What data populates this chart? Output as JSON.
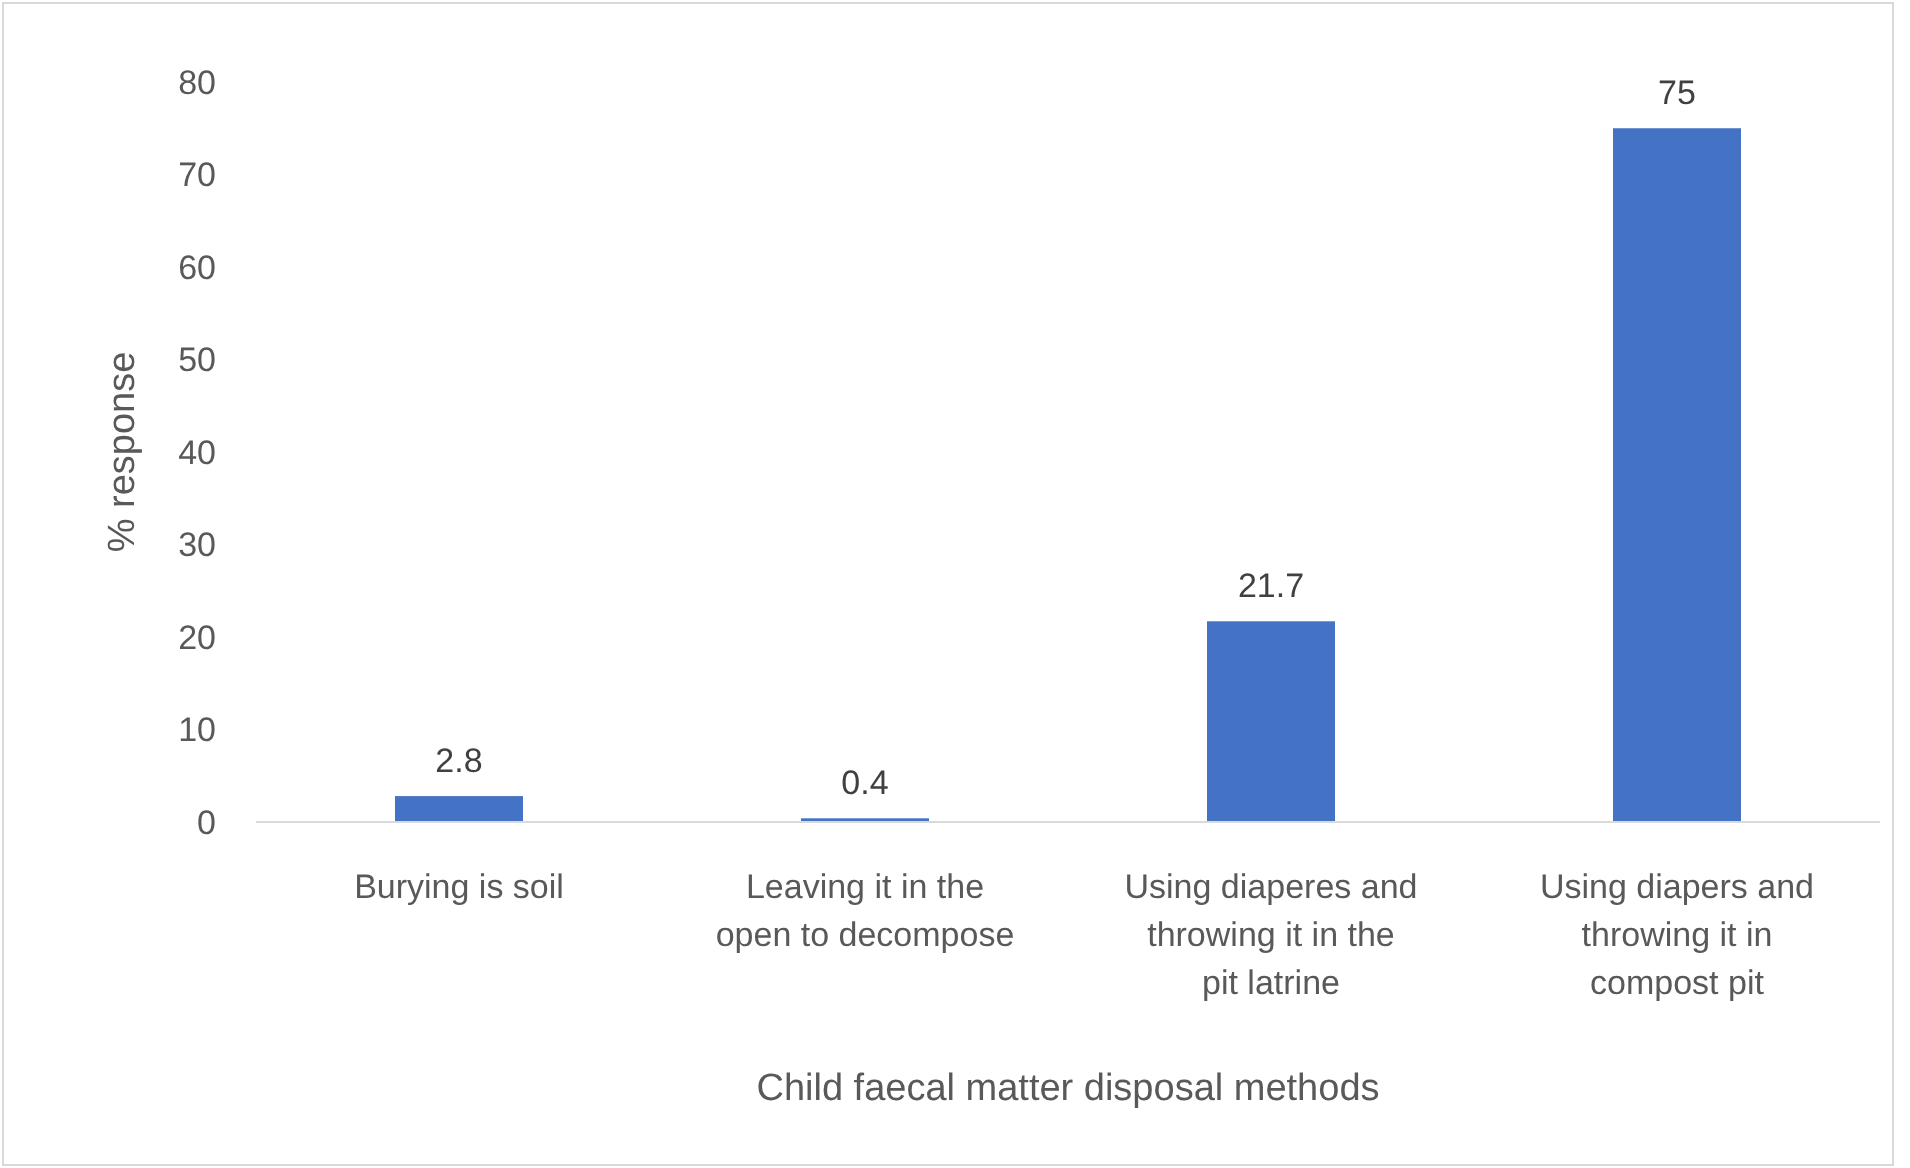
{
  "chart_data": {
    "type": "bar",
    "xlabel": "Child faecal matter disposal methods",
    "ylabel": "% response",
    "categories": [
      "Burying is soil",
      "Leaving it in the open to decompose",
      "Using diaperes and throwing it in the pit latrine",
      "Using diapers and throwing it in compost pit"
    ],
    "values": [
      2.8,
      0.4,
      21.7,
      75
    ],
    "color": "#4472c4",
    "data_labels": true,
    "ylim": [
      0,
      80
    ],
    "yticks": [
      0,
      10,
      20,
      30,
      40,
      50,
      60,
      70,
      80
    ],
    "grid": false
  }
}
